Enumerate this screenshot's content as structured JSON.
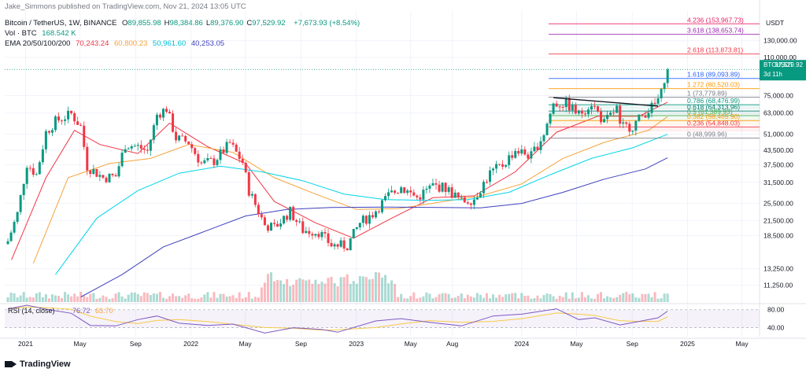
{
  "header": {
    "publisher": "Jake_Simmons published on TradingView.com, Nov 21, 2024 13:05 UTC",
    "symbol": "Bitcoin / TetherUS, 1W, BINANCE",
    "ohlc": [
      {
        "k": "O",
        "v": "89,855.98"
      },
      {
        "k": "H",
        "v": "98,384.86"
      },
      {
        "k": "L",
        "v": "89,376.90"
      },
      {
        "k": "C",
        "v": "97,529.92"
      }
    ],
    "change": "+7,673.93 (+8.54%)",
    "vol_label": "Vol · BTC",
    "vol_value": "168.542 K",
    "ema_label": "EMA 20/50/100/200",
    "ema_values": [
      "70,243.24",
      "60,800.23",
      "50,961.60",
      "40,253.05"
    ]
  },
  "footer": {
    "brand": "TradingView"
  },
  "price_axis": {
    "currency": "USDT",
    "ticks": [
      130000,
      110000,
      75000,
      63000,
      51000,
      43500,
      37500,
      31500,
      25500,
      21500,
      18500,
      13250,
      11250
    ],
    "tick_labels": [
      "130,000.00",
      "110,000.00",
      "75,000.00",
      "63,000.00",
      "51,000.00",
      "43,500.00",
      "37,500.00",
      "31,500.00",
      "25,500.00",
      "21,500.00",
      "18,500.00",
      "13,250.00",
      "11,250.00"
    ],
    "last_label": "BTCUSDT",
    "last_price": "97,529.92",
    "countdown": "3d 11h"
  },
  "chart_data": {
    "type": "candlestick",
    "symbol": "BTCUSDT",
    "interval": "1W",
    "scale": "log",
    "ylim": [
      9500,
      175000
    ],
    "x_labels": [
      "2021",
      "May",
      "Sep",
      "2022",
      "May",
      "Sep",
      "2023",
      "May",
      "Aug",
      "2024",
      "May",
      "Sep",
      "2025",
      "May"
    ],
    "x_label_dates": [
      "2021-01-01",
      "2021-05-01",
      "2021-09-01",
      "2022-01-01",
      "2022-05-01",
      "2022-09-01",
      "2023-01-01",
      "2023-05-01",
      "2023-08-01",
      "2024-01-01",
      "2024-05-01",
      "2024-09-01",
      "2025-01-01",
      "2025-05-01"
    ],
    "price_path": [
      [
        "2020-11-23",
        17500
      ],
      [
        "2020-12-14",
        23000
      ],
      [
        "2021-01-04",
        38000
      ],
      [
        "2021-01-25",
        34000
      ],
      [
        "2021-02-15",
        52000
      ],
      [
        "2021-03-08",
        58000
      ],
      [
        "2021-04-12",
        62500
      ],
      [
        "2021-05-03",
        55000
      ],
      [
        "2021-05-17",
        37000
      ],
      [
        "2021-06-21",
        33000
      ],
      [
        "2021-07-19",
        33500
      ],
      [
        "2021-08-09",
        46000
      ],
      [
        "2021-09-06",
        45000
      ],
      [
        "2021-09-27",
        43000
      ],
      [
        "2021-10-18",
        62000
      ],
      [
        "2021-11-08",
        66000
      ],
      [
        "2021-11-29",
        49000
      ],
      [
        "2021-12-27",
        47000
      ],
      [
        "2022-01-24",
        38000
      ],
      [
        "2022-02-21",
        39000
      ],
      [
        "2022-03-28",
        46500
      ],
      [
        "2022-04-25",
        38500
      ],
      [
        "2022-05-09",
        29000
      ],
      [
        "2022-06-13",
        20500
      ],
      [
        "2022-07-04",
        20000
      ],
      [
        "2022-08-08",
        23500
      ],
      [
        "2022-09-05",
        19500
      ],
      [
        "2022-10-10",
        19200
      ],
      [
        "2022-11-07",
        16800
      ],
      [
        "2022-12-12",
        16700
      ],
      [
        "2023-01-09",
        21000
      ],
      [
        "2023-02-06",
        23000
      ],
      [
        "2023-03-13",
        27500
      ],
      [
        "2023-04-10",
        30000
      ],
      [
        "2023-05-15",
        27000
      ],
      [
        "2023-06-19",
        30500
      ],
      [
        "2023-07-17",
        29800
      ],
      [
        "2023-08-21",
        26000
      ],
      [
        "2023-09-18",
        26800
      ],
      [
        "2023-10-23",
        34500
      ],
      [
        "2023-11-20",
        37500
      ],
      [
        "2023-12-18",
        43500
      ],
      [
        "2024-01-22",
        41000
      ],
      [
        "2024-02-19",
        51500
      ],
      [
        "2024-03-11",
        69000
      ],
      [
        "2024-04-08",
        69500
      ],
      [
        "2024-05-06",
        62000
      ],
      [
        "2024-06-03",
        70000
      ],
      [
        "2024-07-01",
        57000
      ],
      [
        "2024-07-29",
        66000
      ],
      [
        "2024-08-05",
        54500
      ],
      [
        "2024-09-02",
        55500
      ],
      [
        "2024-09-30",
        63500
      ],
      [
        "2024-10-21",
        68500
      ],
      [
        "2024-11-04",
        76500
      ],
      [
        "2024-11-11",
        89800
      ],
      [
        "2024-11-18",
        97529.92
      ]
    ],
    "ema": [
      {
        "name": "EMA 20",
        "color": "#f23645",
        "points": [
          [
            "2020-12-01",
            14500
          ],
          [
            "2021-02-15",
            33000
          ],
          [
            "2021-04-19",
            53000
          ],
          [
            "2021-06-14",
            46000
          ],
          [
            "2021-09-06",
            42000
          ],
          [
            "2021-11-15",
            57000
          ],
          [
            "2022-02-07",
            45000
          ],
          [
            "2022-05-02",
            38000
          ],
          [
            "2022-07-04",
            26000
          ],
          [
            "2022-10-03",
            21000
          ],
          [
            "2022-12-26",
            18000
          ],
          [
            "2023-03-20",
            22000
          ],
          [
            "2023-06-19",
            27000
          ],
          [
            "2023-09-18",
            27500
          ],
          [
            "2023-12-18",
            35000
          ],
          [
            "2024-03-18",
            52000
          ],
          [
            "2024-06-17",
            61000
          ],
          [
            "2024-09-16",
            61000
          ],
          [
            "2024-11-18",
            70243.24
          ]
        ]
      },
      {
        "name": "EMA 50",
        "color": "#f7a33c",
        "points": [
          [
            "2021-01-18",
            14000
          ],
          [
            "2021-04-05",
            33000
          ],
          [
            "2021-07-05",
            38000
          ],
          [
            "2021-10-04",
            40000
          ],
          [
            "2021-12-27",
            46000
          ],
          [
            "2022-04-04",
            42500
          ],
          [
            "2022-07-04",
            33000
          ],
          [
            "2022-10-03",
            28000
          ],
          [
            "2023-01-02",
            24000
          ],
          [
            "2023-04-03",
            24200
          ],
          [
            "2023-07-03",
            25800
          ],
          [
            "2023-10-02",
            27500
          ],
          [
            "2024-01-01",
            31000
          ],
          [
            "2024-04-01",
            40000
          ],
          [
            "2024-07-01",
            47000
          ],
          [
            "2024-10-07",
            53000
          ],
          [
            "2024-11-18",
            60800.23
          ]
        ]
      },
      {
        "name": "EMA 100",
        "color": "#00d5e8",
        "points": [
          [
            "2021-03-08",
            12500
          ],
          [
            "2021-06-07",
            22000
          ],
          [
            "2021-09-06",
            29000
          ],
          [
            "2021-12-06",
            34500
          ],
          [
            "2022-03-07",
            37000
          ],
          [
            "2022-06-06",
            35000
          ],
          [
            "2022-09-05",
            32000
          ],
          [
            "2022-12-05",
            28000
          ],
          [
            "2023-03-06",
            26500
          ],
          [
            "2023-06-05",
            26300
          ],
          [
            "2023-09-04",
            26500
          ],
          [
            "2023-12-04",
            28500
          ],
          [
            "2024-03-04",
            34000
          ],
          [
            "2024-06-03",
            40000
          ],
          [
            "2024-09-02",
            44500
          ],
          [
            "2024-11-18",
            50961.6
          ]
        ]
      },
      {
        "name": "EMA 200",
        "color": "#3f3fbf",
        "points": [
          [
            "2021-05-03",
            10000
          ],
          [
            "2021-08-02",
            12500
          ],
          [
            "2021-11-01",
            16500
          ],
          [
            "2022-02-07",
            19500
          ],
          [
            "2022-05-02",
            22500
          ],
          [
            "2022-08-01",
            24000
          ],
          [
            "2022-11-07",
            24500
          ],
          [
            "2023-03-06",
            24600
          ],
          [
            "2023-07-03",
            24500
          ],
          [
            "2023-10-02",
            24400
          ],
          [
            "2024-01-01",
            25500
          ],
          [
            "2024-04-01",
            28500
          ],
          [
            "2024-07-01",
            32500
          ],
          [
            "2024-09-30",
            36000
          ],
          [
            "2024-11-18",
            40253.05
          ]
        ]
      }
    ],
    "fibonacci": [
      {
        "label": "4.236 (153,967.73)",
        "price": 153967.73,
        "color": "#e91e63"
      },
      {
        "label": "3.618 (138,653.74)",
        "price": 138653.74,
        "color": "#9c27b0"
      },
      {
        "label": "2.618 (113,873.81)",
        "price": 113873.81,
        "color": "#f23645"
      },
      {
        "label": "1.618 (89,093.89)",
        "price": 89093.89,
        "color": "#2962ff"
      },
      {
        "label": "1.272 (80,520.03)",
        "price": 80520.03,
        "color": "#ff9800"
      },
      {
        "label": "1 (73,779.89)",
        "price": 73779.89,
        "color": "#787b86"
      },
      {
        "label": "0.786 (68,476.99)",
        "price": 68476.99,
        "color": "#089981"
      },
      {
        "label": "0.618 (64,313.96)",
        "price": 64313.96,
        "color": "#00796b"
      },
      {
        "label": "0.5 (61,389.93)",
        "price": 61389.93,
        "color": "#4caf50"
      },
      {
        "label": "0.382 (58,465.90)",
        "price": 58465.9,
        "color": "#ff9800"
      },
      {
        "label": "0.236 (54,848.03)",
        "price": 54848.03,
        "color": "#f23645"
      },
      {
        "label": "0 (48,999.96)",
        "price": 48999.96,
        "color": "#787b86"
      }
    ],
    "trendline": [
      [
        "2024-03-11",
        73500
      ],
      [
        "2024-10-28",
        67500
      ]
    ],
    "rsi": {
      "label": "RSI (14, close)",
      "value": "76.72",
      "ma_value": "63.70",
      "overbought": 80,
      "oversold": 40,
      "ticks": [
        80,
        40
      ],
      "points": [
        [
          "2020-11-23",
          82
        ],
        [
          "2021-01-04",
          90
        ],
        [
          "2021-02-22",
          80
        ],
        [
          "2021-04-12",
          72
        ],
        [
          "2021-05-24",
          45
        ],
        [
          "2021-07-19",
          44
        ],
        [
          "2021-09-06",
          58
        ],
        [
          "2021-10-18",
          66
        ],
        [
          "2021-12-06",
          50
        ],
        [
          "2022-02-07",
          45
        ],
        [
          "2022-04-04",
          48
        ],
        [
          "2022-06-13",
          28
        ],
        [
          "2022-08-15",
          40
        ],
        [
          "2022-10-17",
          36
        ],
        [
          "2022-11-21",
          30
        ],
        [
          "2023-02-13",
          55
        ],
        [
          "2023-04-10",
          60
        ],
        [
          "2023-06-12",
          52
        ],
        [
          "2023-08-21",
          44
        ],
        [
          "2023-10-30",
          66
        ],
        [
          "2024-01-01",
          70
        ],
        [
          "2024-03-18",
          82
        ],
        [
          "2024-05-06",
          58
        ],
        [
          "2024-06-10",
          62
        ],
        [
          "2024-08-05",
          46
        ],
        [
          "2024-09-16",
          54
        ],
        [
          "2024-10-28",
          62
        ],
        [
          "2024-11-18",
          76.72
        ]
      ]
    },
    "volume_note": "weekly volume bars, green for up weeks, red for down weeks"
  }
}
